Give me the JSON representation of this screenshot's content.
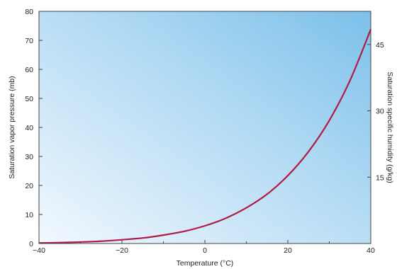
{
  "chart_data": {
    "type": "line",
    "title": "",
    "xlabel": "Temperature (°C)",
    "ylabel": "Saturation vapor pressure (mb)",
    "y2label": "Saturation specific humidity (g/kg)",
    "xlim": [
      -40,
      40
    ],
    "ylim": [
      0,
      80
    ],
    "y2lim": [
      0,
      52.5
    ],
    "x_ticks": [
      -40,
      -20,
      0,
      20,
      40
    ],
    "x_tick_labels": [
      "−40",
      "−20",
      "0",
      "20",
      "40"
    ],
    "y_ticks": [
      0,
      10,
      20,
      30,
      40,
      50,
      60,
      70,
      80
    ],
    "y_tick_labels": [
      "0",
      "10",
      "20",
      "30",
      "40",
      "50",
      "60",
      "70",
      "80"
    ],
    "y2_ticks": [
      15,
      30,
      45
    ],
    "y2_tick_labels": [
      "15",
      "30",
      "45"
    ],
    "grid": false,
    "legend": "none",
    "colors": {
      "curve": "#b01c44",
      "background_light": "#f2f8fe",
      "background_dark": "#7cc0ea"
    },
    "series": [
      {
        "x": [
          -40,
          -35,
          -30,
          -25,
          -20,
          -15,
          -10,
          -5,
          0,
          5,
          10,
          15,
          20,
          25,
          30,
          35,
          40
        ],
        "values": [
          0.2,
          0.3,
          0.5,
          0.8,
          1.3,
          1.9,
          2.9,
          4.2,
          6.1,
          8.7,
          12.3,
          17.0,
          23.4,
          31.7,
          42.4,
          56.2,
          73.8
        ]
      }
    ]
  }
}
